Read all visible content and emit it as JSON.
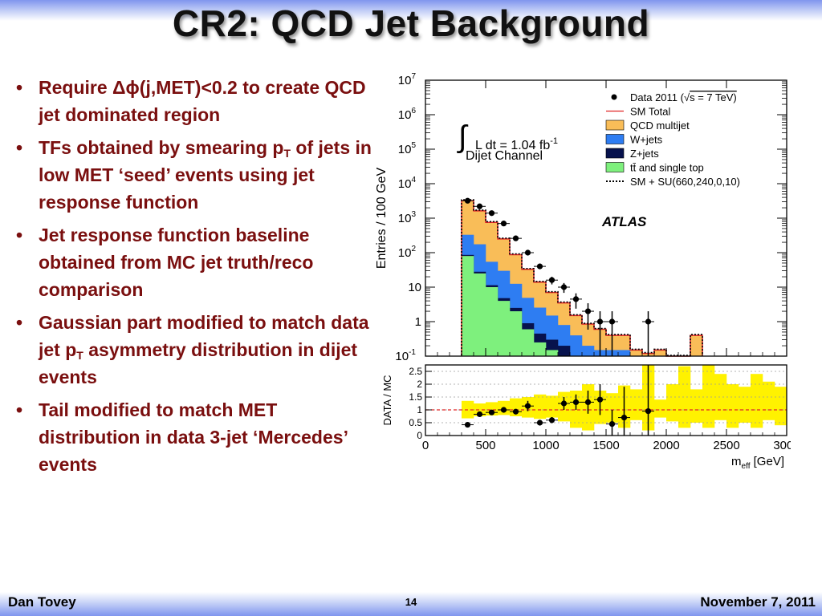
{
  "slide": {
    "title": "CR2: QCD Jet Background",
    "bullets": [
      {
        "parts": [
          {
            "t": "Require Δϕ(j,MET)<0.2 to create QCD jet dominated region"
          }
        ]
      },
      {
        "parts": [
          {
            "t": "TFs obtained by smearing p"
          },
          {
            "t": "T",
            "sub": true
          },
          {
            "t": " of jets in low MET ‘seed’ events using jet response function"
          }
        ]
      },
      {
        "parts": [
          {
            "t": "Jet response function baseline obtained from MC jet truth/reco comparison"
          }
        ]
      },
      {
        "parts": [
          {
            "t": "Gaussian part modified to match data jet p"
          },
          {
            "t": "T",
            "sub": true
          },
          {
            "t": " asymmetry distribution in dijet events"
          }
        ]
      },
      {
        "parts": [
          {
            "t": "Tail modified to match MET distribution in data 3-jet ‘Mercedes’ events"
          }
        ]
      }
    ],
    "bullet_marker": "•",
    "footer": {
      "author": "Dan Tovey",
      "page": "14",
      "date": "November 7, 2011"
    }
  },
  "colors": {
    "text": "#7a0f0f",
    "qcd": "#f9bd58",
    "wjets": "#2e7df2",
    "zjets": "#07124d",
    "ttbar": "#7ef07d",
    "sm_total": "#e02424",
    "ratio_band": "#fff200"
  },
  "chart_data": [
    {
      "type": "histogram",
      "annotation": {
        "lumi": "L dt = 1.04 fb",
        "lumi_sup": "-1",
        "integral": "∫",
        "channel": "Dijet Channel",
        "experiment": "ATLAS"
      },
      "ylabel": "Entries / 100 GeV",
      "yscale": "log",
      "ylim": [
        0.1,
        10000000
      ],
      "xlim": [
        0,
        3000
      ],
      "yticks": [
        {
          "v": 0.1,
          "base": "10",
          "exp": "-1"
        },
        {
          "v": 1,
          "base": "1",
          "exp": ""
        },
        {
          "v": 10,
          "base": "10",
          "exp": ""
        },
        {
          "v": 100,
          "base": "10",
          "exp": "2"
        },
        {
          "v": 1000,
          "base": "10",
          "exp": "3"
        },
        {
          "v": 10000,
          "base": "10",
          "exp": "4"
        },
        {
          "v": 100000,
          "base": "10",
          "exp": "5"
        },
        {
          "v": 1000000,
          "base": "10",
          "exp": "6"
        },
        {
          "v": 10000000,
          "base": "10",
          "exp": "7"
        }
      ],
      "legend": {
        "placement": "top-right",
        "entries": [
          {
            "label": "Data 2011 (",
            "sqrt": "√",
            "label2": "s = 7 TeV)",
            "style": "marker"
          },
          {
            "label": "SM Total",
            "style": "line"
          },
          {
            "label": "QCD multijet",
            "style": "fill",
            "color": "qcd"
          },
          {
            "label": "W+jets",
            "style": "fill",
            "color": "wjets"
          },
          {
            "label": "Z+jets",
            "style": "fill",
            "color": "zjets"
          },
          {
            "label": "tt̄ and single top",
            "style": "fill",
            "color": "ttbar"
          },
          {
            "label": "SM + SU(660,240,0,10)",
            "style": "dotted"
          }
        ]
      },
      "bin_edges": [
        300,
        400,
        500,
        600,
        700,
        800,
        900,
        1000,
        1100,
        1200,
        1300,
        1400,
        1500,
        1600,
        1700,
        1800,
        1900,
        2000,
        2100,
        2200,
        2300
      ],
      "series": [
        {
          "name": "tt̄ and single top",
          "key": "ttbar",
          "values": [
            80,
            25,
            10,
            4,
            2,
            0.6,
            0.25,
            0.15,
            0.1,
            0,
            0,
            0,
            0,
            0,
            0,
            0,
            0,
            0,
            0,
            0
          ]
        },
        {
          "name": "Z+jets",
          "key": "zjets",
          "values": [
            6,
            3,
            1.4,
            0.8,
            0.5,
            0.3,
            0.2,
            0.15,
            0.1,
            0.05,
            0.04,
            0,
            0,
            0,
            0,
            0,
            0,
            0,
            0,
            0
          ]
        },
        {
          "name": "W+jets",
          "key": "wjets",
          "values": [
            244,
            147,
            43,
            25,
            10,
            4,
            2.1,
            1.2,
            0.6,
            0.35,
            0.16,
            0.15,
            0.15,
            0.15,
            0,
            0,
            0,
            0,
            0,
            0
          ]
        },
        {
          "name": "QCD multijet",
          "key": "qcd",
          "values": [
            2900,
            1450,
            700,
            220,
            75,
            28,
            11.5,
            5.5,
            2.7,
            1.1,
            0.65,
            0.45,
            0.25,
            0.25,
            0.15,
            0.12,
            0.15,
            0,
            0,
            0.4
          ]
        }
      ],
      "sm_total": [
        3230,
        1625,
        754,
        250,
        87.5,
        32.9,
        13.95,
        7.0,
        3.5,
        1.5,
        0.85,
        0.6,
        0.4,
        0.4,
        0.15,
        0.12,
        0.15,
        0,
        0,
        0.4
      ],
      "data_points": [
        {
          "x": 350,
          "y": 3200
        },
        {
          "x": 450,
          "y": 2200
        },
        {
          "x": 550,
          "y": 1400
        },
        {
          "x": 650,
          "y": 700
        },
        {
          "x": 750,
          "y": 260
        },
        {
          "x": 850,
          "y": 100
        },
        {
          "x": 950,
          "y": 40
        },
        {
          "x": 1050,
          "y": 16
        },
        {
          "x": 1150,
          "y": 10
        },
        {
          "x": 1250,
          "y": 4.5
        },
        {
          "x": 1350,
          "y": 2
        },
        {
          "x": 1450,
          "y": 1
        },
        {
          "x": 1550,
          "y": 1
        },
        {
          "x": 1850,
          "y": 1
        }
      ]
    },
    {
      "type": "ratio",
      "ylabel": "DATA / MC",
      "xlabel": "m",
      "xlabel_sub": "eff",
      "xlabel_unit": " [GeV]",
      "ylim": [
        0,
        2.75
      ],
      "yticks": [
        0,
        0.5,
        1,
        1.5,
        2,
        2.5
      ],
      "xticks": [
        0,
        500,
        1000,
        1500,
        2000,
        2500,
        3000
      ],
      "band": [
        [
          0.67,
          1.35
        ],
        [
          0.75,
          1.25
        ],
        [
          0.78,
          1.3
        ],
        [
          0.8,
          1.35
        ],
        [
          0.75,
          1.45
        ],
        [
          0.7,
          1.5
        ],
        [
          0.65,
          1.6
        ],
        [
          0.7,
          1.55
        ],
        [
          0.55,
          1.7
        ],
        [
          0.3,
          1.75
        ],
        [
          0.2,
          2.0
        ],
        [
          0.45,
          1.75
        ],
        [
          0.5,
          1.65
        ],
        [
          0.3,
          1.95
        ],
        [
          0.6,
          1.8
        ],
        [
          0.2,
          2.75
        ],
        [
          0.7,
          1.4
        ],
        [
          0.55,
          2.0
        ],
        [
          0.3,
          2.7
        ],
        [
          0.5,
          1.8
        ],
        [
          0.3,
          2.75
        ],
        [
          0.6,
          2.4
        ],
        [
          0.3,
          2.0
        ],
        [
          0.5,
          1.9
        ],
        [
          0.3,
          2.4
        ],
        [
          0.6,
          2.1
        ],
        [
          0.4,
          1.9
        ]
      ],
      "points": [
        {
          "x": 350,
          "y": 0.42,
          "err": 0.05
        },
        {
          "x": 450,
          "y": 0.83,
          "err": 0.06
        },
        {
          "x": 550,
          "y": 0.9,
          "err": 0.06
        },
        {
          "x": 650,
          "y": 1.0,
          "err": 0.07
        },
        {
          "x": 750,
          "y": 0.93,
          "err": 0.08
        },
        {
          "x": 850,
          "y": 1.15,
          "err": 0.2
        },
        {
          "x": 950,
          "y": 0.5,
          "err": 0.1
        },
        {
          "x": 1050,
          "y": 0.6,
          "err": 0.12
        },
        {
          "x": 1150,
          "y": 1.25,
          "err": 0.25
        },
        {
          "x": 1250,
          "y": 1.3,
          "err": 0.3
        },
        {
          "x": 1350,
          "y": 1.3,
          "err": 0.45
        },
        {
          "x": 1450,
          "y": 1.4,
          "err": 0.6
        },
        {
          "x": 1550,
          "y": 0.45,
          "err": 0.55
        },
        {
          "x": 1650,
          "y": 0.7,
          "err": 1.2
        },
        {
          "x": 1850,
          "y": 0.95,
          "err": 1.8
        }
      ]
    }
  ]
}
